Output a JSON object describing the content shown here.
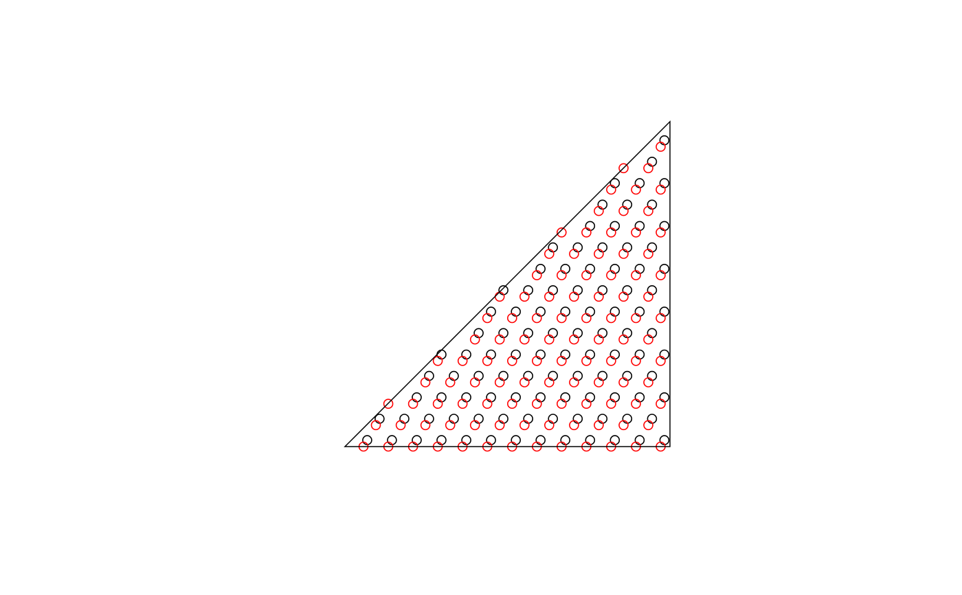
{
  "chart_data": {
    "type": "scatter",
    "title": "",
    "xlabel": "",
    "ylabel": "",
    "axes_visible": false,
    "xlim": [
      0,
      1
    ],
    "ylim": [
      0,
      1
    ],
    "boundary": {
      "name": "triangle",
      "vertices": [
        [
          0,
          0
        ],
        [
          1,
          0
        ],
        [
          1,
          1
        ]
      ],
      "color": "#000000"
    },
    "series": [
      {
        "name": "black-grid",
        "marker": "open-circle",
        "color": "#000000",
        "grid_spacing_x": 0.0762,
        "grid_spacing_y": 0.0659,
        "x_start": 0.0686,
        "y_start": 0.0198,
        "x_max": 0.9829,
        "y_max": 0.9427,
        "stagger_fraction": 0.5
      },
      {
        "name": "red-grid",
        "marker": "open-circle",
        "color": "#ff0000",
        "grid_spacing_x": 0.0762,
        "grid_spacing_y": 0.0659,
        "x_start": 0.0572,
        "y_start": 0.0,
        "x_max": 0.9715,
        "y_max": 0.9229,
        "stagger_fraction": 0.5
      }
    ]
  }
}
